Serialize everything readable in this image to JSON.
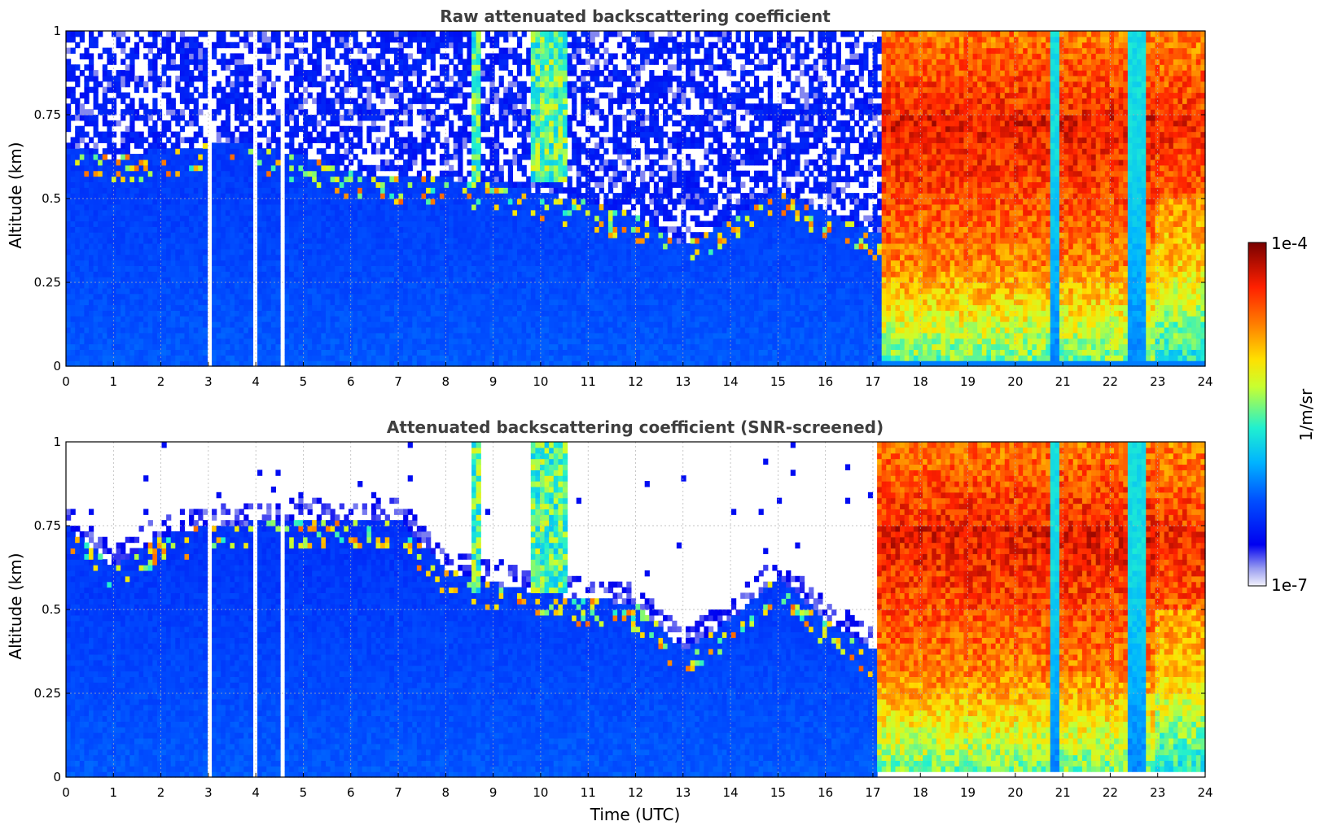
{
  "chart_data": [
    {
      "type": "heatmap",
      "title": "Raw attenuated backscattering coefficient",
      "xlabel": "",
      "ylabel": "Altitude (km)",
      "xlim": [
        0,
        24
      ],
      "ylim": [
        0,
        1
      ],
      "x_ticks": [
        "0",
        "1",
        "2",
        "3",
        "4",
        "5",
        "6",
        "7",
        "8",
        "9",
        "10",
        "11",
        "12",
        "13",
        "14",
        "15",
        "16",
        "17",
        "18",
        "19",
        "20",
        "21",
        "22",
        "23",
        "24"
      ],
      "y_ticks": [
        "0",
        "0.25",
        "0.5",
        "0.75",
        "1"
      ],
      "grid": true,
      "snr_screened": false,
      "aerosol_top_km": [
        [
          0,
          0.66
        ],
        [
          1,
          0.62
        ],
        [
          2,
          0.65
        ],
        [
          3,
          0.66
        ],
        [
          4,
          0.66
        ],
        [
          5,
          0.63
        ],
        [
          6,
          0.58
        ],
        [
          7,
          0.56
        ],
        [
          8,
          0.56
        ],
        [
          9,
          0.55
        ],
        [
          10,
          0.52
        ],
        [
          11,
          0.49
        ],
        [
          12,
          0.45
        ],
        [
          13,
          0.36
        ],
        [
          14,
          0.44
        ],
        [
          15,
          0.53
        ],
        [
          16,
          0.46
        ],
        [
          17,
          0.4
        ]
      ],
      "fog_start_utc": 17.2,
      "clear_gaps_utc": [
        [
          20.75,
          20.9
        ],
        [
          22.35,
          22.75
        ]
      ],
      "missing_profiles_utc": [
        3.0,
        4.0,
        4.58
      ],
      "plumes_utc": [
        [
          8.5,
          8.75
        ],
        [
          9.8,
          10.6
        ]
      ]
    },
    {
      "type": "heatmap",
      "title": "Attenuated backscattering coefficient (SNR-screened)",
      "xlabel": "Time (UTC)",
      "ylabel": "Altitude (km)",
      "xlim": [
        0,
        24
      ],
      "ylim": [
        0,
        1
      ],
      "x_ticks": [
        "0",
        "1",
        "2",
        "3",
        "4",
        "5",
        "6",
        "7",
        "8",
        "9",
        "10",
        "11",
        "12",
        "13",
        "14",
        "15",
        "16",
        "17",
        "18",
        "19",
        "20",
        "21",
        "22",
        "23",
        "24"
      ],
      "y_ticks": [
        "0",
        "0.25",
        "0.5",
        "0.75",
        "1"
      ],
      "grid": true,
      "snr_screened": true,
      "aerosol_top_km": [
        [
          0,
          0.75
        ],
        [
          1,
          0.63
        ],
        [
          2,
          0.72
        ],
        [
          3,
          0.75
        ],
        [
          4,
          0.76
        ],
        [
          5,
          0.77
        ],
        [
          6,
          0.76
        ],
        [
          7,
          0.77
        ],
        [
          8,
          0.62
        ],
        [
          9,
          0.58
        ],
        [
          10,
          0.55
        ],
        [
          11,
          0.53
        ],
        [
          12,
          0.52
        ],
        [
          13,
          0.38
        ],
        [
          14,
          0.47
        ],
        [
          15,
          0.6
        ],
        [
          16,
          0.47
        ],
        [
          17,
          0.38
        ]
      ],
      "fog_start_utc": 17.1,
      "clear_gaps_utc": [
        [
          20.75,
          20.9
        ],
        [
          22.35,
          22.75
        ]
      ],
      "missing_profiles_utc": [
        3.0,
        4.0,
        4.58
      ],
      "plumes_utc": [
        [
          8.5,
          8.75
        ],
        [
          9.8,
          10.6
        ]
      ]
    }
  ],
  "colorbar": {
    "label": "1/m/sr",
    "max_label": "1e-4",
    "min_label": "1e-7",
    "scale": "log",
    "colormap": "jet",
    "low_color": "#e8e8f8",
    "mid_color": "#0f28f0",
    "high_color": "#7d0000"
  }
}
